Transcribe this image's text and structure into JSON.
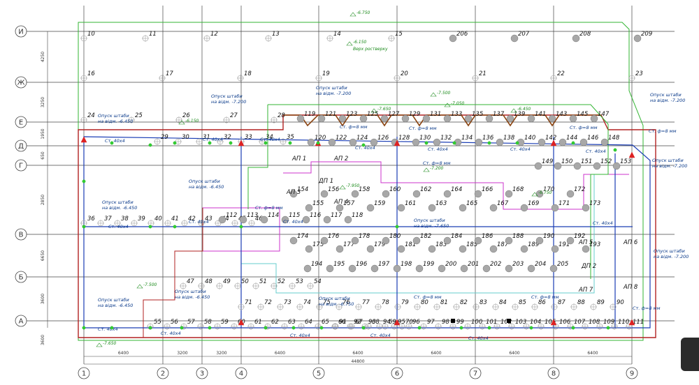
{
  "grid": {
    "columns": [
      "1",
      "2",
      "3",
      "4",
      "5",
      "6",
      "7",
      "8",
      "9"
    ],
    "rows": [
      "И",
      "Ж",
      "Е",
      "Д",
      "Г",
      "В",
      "Б",
      "А"
    ],
    "row_dims": [
      "4250",
      "3250",
      "1950",
      "650",
      "2850",
      "6650",
      "3600",
      "3600"
    ],
    "col_dims": [
      "6400",
      "3200",
      "3200",
      "6400",
      "6400",
      "6400",
      "6400",
      "6400"
    ],
    "total_dim": "44800"
  },
  "piles": [
    "10",
    "11",
    "12",
    "13",
    "14",
    "15",
    "206",
    "207",
    "208",
    "209",
    "16",
    "17",
    "18",
    "19",
    "20",
    "21",
    "22",
    "23",
    "24",
    "25",
    "26",
    "27",
    "28",
    "29",
    "30",
    "31",
    "32",
    "33",
    "34",
    "35",
    "36",
    "37",
    "38",
    "39",
    "40",
    "41",
    "42",
    "43",
    "44",
    "45",
    "46",
    "47",
    "48",
    "49",
    "50",
    "51",
    "52",
    "53",
    "54",
    "55",
    "56",
    "57",
    "58",
    "59",
    "60",
    "61",
    "62",
    "63",
    "64",
    "65",
    "66",
    "67",
    "68",
    "69",
    "70",
    "71",
    "72",
    "73",
    "74",
    "75",
    "76",
    "77",
    "78",
    "79",
    "80",
    "81",
    "82",
    "83",
    "84",
    "85",
    "86",
    "87",
    "88",
    "89",
    "90",
    "91",
    "92",
    "93",
    "94",
    "95",
    "96",
    "97",
    "98",
    "99",
    "100",
    "101",
    "102",
    "103",
    "104",
    "105",
    "106",
    "107",
    "108",
    "109",
    "110",
    "111",
    "112",
    "113",
    "114",
    "115",
    "116",
    "117",
    "118",
    "119",
    "120",
    "121",
    "122",
    "123",
    "124",
    "125",
    "126",
    "127",
    "128",
    "129",
    "130",
    "131",
    "132",
    "133",
    "134",
    "135",
    "136",
    "137",
    "138",
    "139",
    "140",
    "141",
    "142",
    "143",
    "144",
    "145",
    "146",
    "147",
    "148",
    "149",
    "150",
    "151",
    "152",
    "153",
    "154",
    "155",
    "156",
    "157",
    "158",
    "159",
    "160",
    "161",
    "162",
    "163",
    "164",
    "165",
    "166",
    "167",
    "168",
    "169",
    "170",
    "171",
    "172",
    "173",
    "174",
    "175",
    "176",
    "177",
    "178",
    "179",
    "180",
    "181",
    "182",
    "183",
    "184",
    "185",
    "186",
    "187",
    "188",
    "189",
    "190",
    "191",
    "192",
    "193",
    "194",
    "195",
    "196",
    "197",
    "198",
    "199",
    "200",
    "201",
    "202",
    "203",
    "204",
    "205"
  ],
  "notes": {
    "strip_a": "Опуск штаби",
    "strip_b": "на відм. -6.450",
    "strip_c": "на відм. -7.200",
    "strip_d": "на відм. -7.650",
    "strip_e": "на відм. -6.750",
    "rod_40x4": "Ст. 40х4",
    "rod_phi8": "Ст. ф=8 мм",
    "grillage": "Верх ростверку",
    "ap": [
      "АП 1",
      "АП 2",
      "АП 3",
      "АП 4",
      "АП 5",
      "АП 6",
      "АП 7",
      "АП 8"
    ],
    "dp": [
      "ДП 1",
      "ДП 2"
    ],
    "levels": [
      "-6.750",
      "-6.150",
      "-7.500",
      "-7.650",
      "-7.050",
      "-6.450",
      "-7.200",
      "-7.950"
    ]
  },
  "colors": {
    "grid": "#222222",
    "earth_loop": "#1a3db5",
    "foundation": "#b22222",
    "green_outline": "#33b533",
    "brown": "#8b4513",
    "magenta": "#cc33cc",
    "pile_fill": "#a8a8a8"
  }
}
